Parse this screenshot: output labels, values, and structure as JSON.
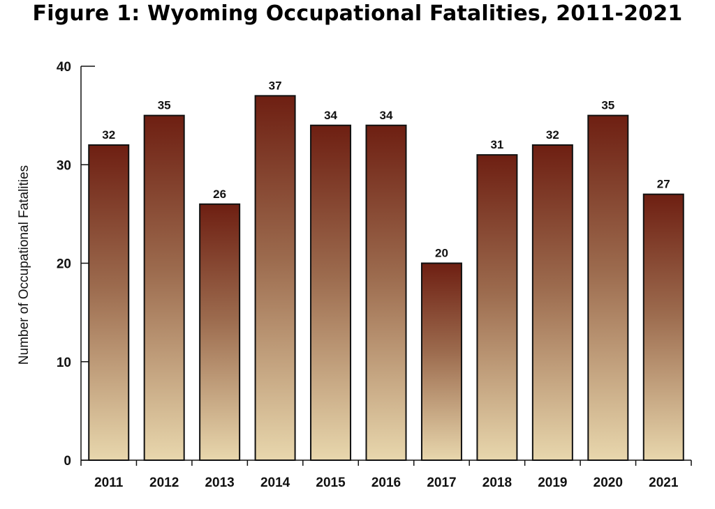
{
  "chart_data": {
    "type": "bar",
    "title": "Figure 1: Wyoming Occupational Fatalities, 2011-2021",
    "xlabel": "",
    "ylabel": "Number of Occupational Fatalities",
    "categories": [
      "2011",
      "2012",
      "2013",
      "2014",
      "2015",
      "2016",
      "2017",
      "2018",
      "2019",
      "2020",
      "2021"
    ],
    "values": [
      32,
      35,
      26,
      37,
      34,
      34,
      20,
      31,
      32,
      35,
      27
    ],
    "data_labels": [
      "32",
      "35",
      "26",
      "37",
      "34",
      "34",
      "20",
      "31",
      "32",
      "35",
      "27"
    ],
    "ylim": [
      0,
      40
    ],
    "yticks": [
      0,
      10,
      20,
      30,
      40
    ],
    "grid": false,
    "legend": "none",
    "colors": {
      "bar_top": "#6e1f12",
      "bar_bottom": "#e8d7ad",
      "bar_outline": "#111111"
    }
  }
}
